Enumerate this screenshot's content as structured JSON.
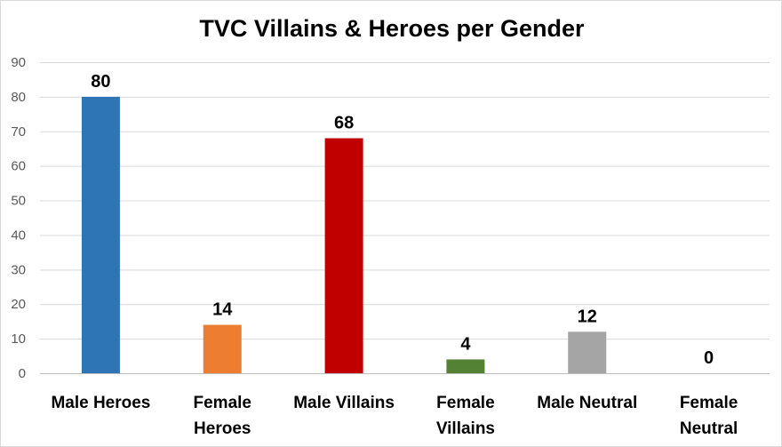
{
  "chart_data": {
    "type": "bar",
    "title": "TVC Villains & Heroes per Gender",
    "categories": [
      [
        "Male Heroes"
      ],
      [
        "Female",
        "Heroes"
      ],
      [
        "Male Villains"
      ],
      [
        "Female",
        "Villains"
      ],
      [
        "Male Neutral"
      ],
      [
        "Female",
        "Neutral"
      ]
    ],
    "values": [
      80,
      14,
      68,
      4,
      12,
      0
    ],
    "colors": [
      "#2e75b6",
      "#ed7d31",
      "#c00000",
      "#548235",
      "#a5a5a5",
      "#5b9bd5"
    ],
    "data_labels": [
      "80",
      "14",
      "68",
      "4",
      "12",
      "0"
    ],
    "yticks": [
      "0",
      "10",
      "20",
      "30",
      "40",
      "50",
      "60",
      "70",
      "80",
      "90"
    ],
    "ylim": [
      0,
      90
    ],
    "xlabel": "",
    "ylabel": "",
    "grid": true,
    "legend": "none"
  }
}
